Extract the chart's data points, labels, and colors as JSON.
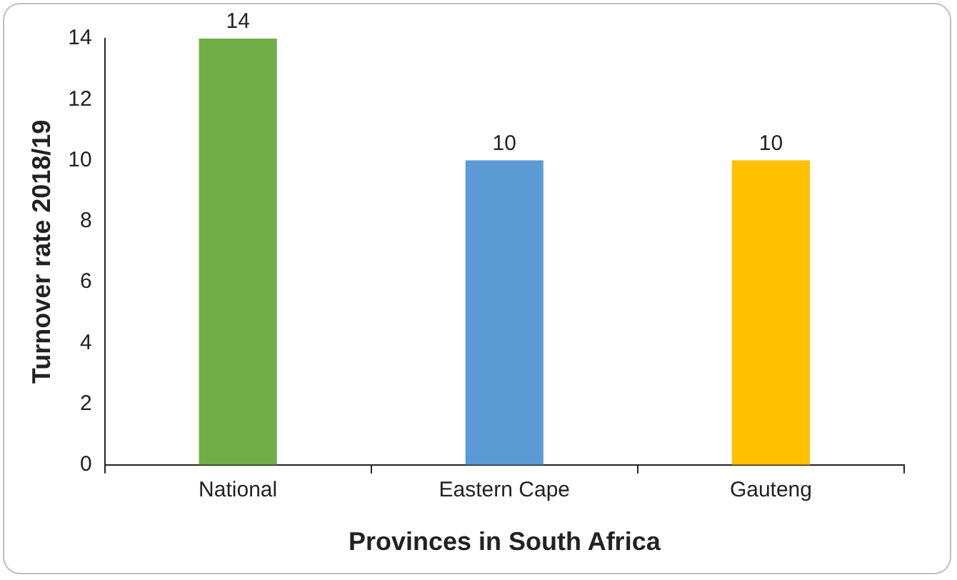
{
  "chart_data": {
    "type": "bar",
    "xlabel": "Provinces in South Africa",
    "ylabel": "Turnover rate 2018/19",
    "categories": [
      "National",
      "Eastern Cape",
      "Gauteng"
    ],
    "values": [
      14,
      10,
      10
    ],
    "colors": [
      "#70ad47",
      "#5b9bd5",
      "#ffc000"
    ],
    "ylim": [
      0,
      14
    ],
    "yticks": [
      0,
      2,
      4,
      6,
      8,
      10,
      12,
      14
    ],
    "grid": false,
    "legend": false,
    "data_labels": true
  }
}
